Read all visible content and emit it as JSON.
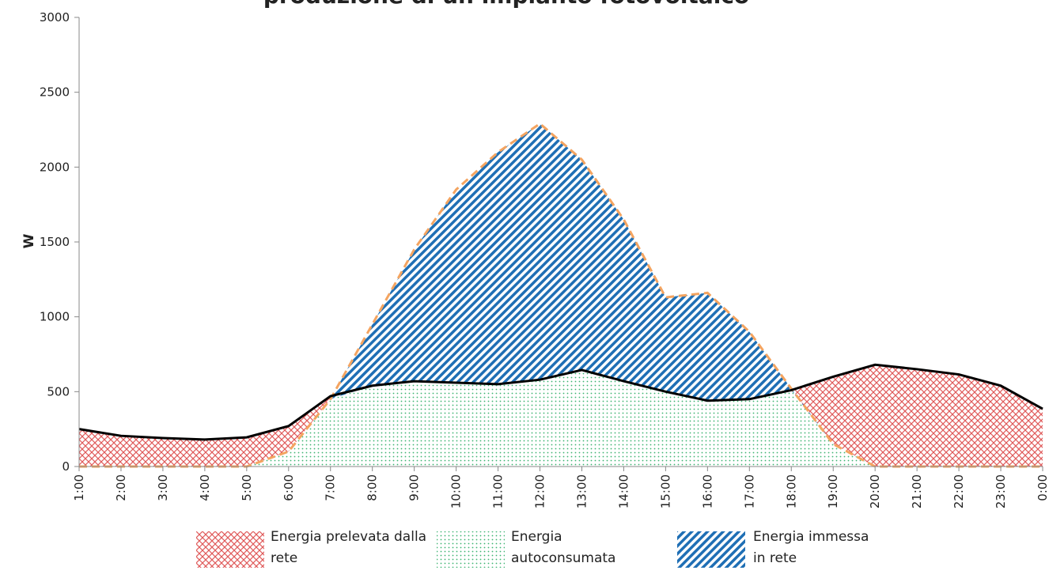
{
  "chart_data": {
    "type": "area",
    "title": "produzione di un impianto fotovoltaico",
    "y_label": "W",
    "categories": [
      "1:00",
      "2:00",
      "3:00",
      "4:00",
      "5:00",
      "6:00",
      "7:00",
      "8:00",
      "9:00",
      "10:00",
      "11:00",
      "12:00",
      "13:00",
      "14:00",
      "15:00",
      "16:00",
      "17:00",
      "18:00",
      "19:00",
      "20:00",
      "21:00",
      "22:00",
      "23:00",
      "0:00"
    ],
    "consumption": {
      "color": "#000000",
      "values": [
        250,
        205,
        190,
        180,
        195,
        270,
        470,
        540,
        570,
        560,
        550,
        580,
        645,
        570,
        500,
        440,
        450,
        510,
        600,
        680,
        650,
        615,
        540,
        385
      ]
    },
    "production": {
      "color": "#f4a460",
      "values": [
        0,
        0,
        0,
        0,
        0,
        100,
        450,
        950,
        1450,
        1850,
        2100,
        2290,
        2050,
        1650,
        1130,
        1160,
        900,
        520,
        150,
        0,
        0,
        0,
        0,
        0
      ]
    },
    "areas": [
      {
        "name": "Energia prelevata dalla rete",
        "color": "#e05a5a"
      },
      {
        "name": "Energia autoconsumata",
        "color": "#3cb371"
      },
      {
        "name": "Energia immessa in rete",
        "color": "#1f6fb5"
      }
    ],
    "ylim": [
      0,
      3000
    ],
    "yticks": [
      0,
      500,
      1000,
      1500,
      2000,
      2500,
      3000
    ]
  }
}
